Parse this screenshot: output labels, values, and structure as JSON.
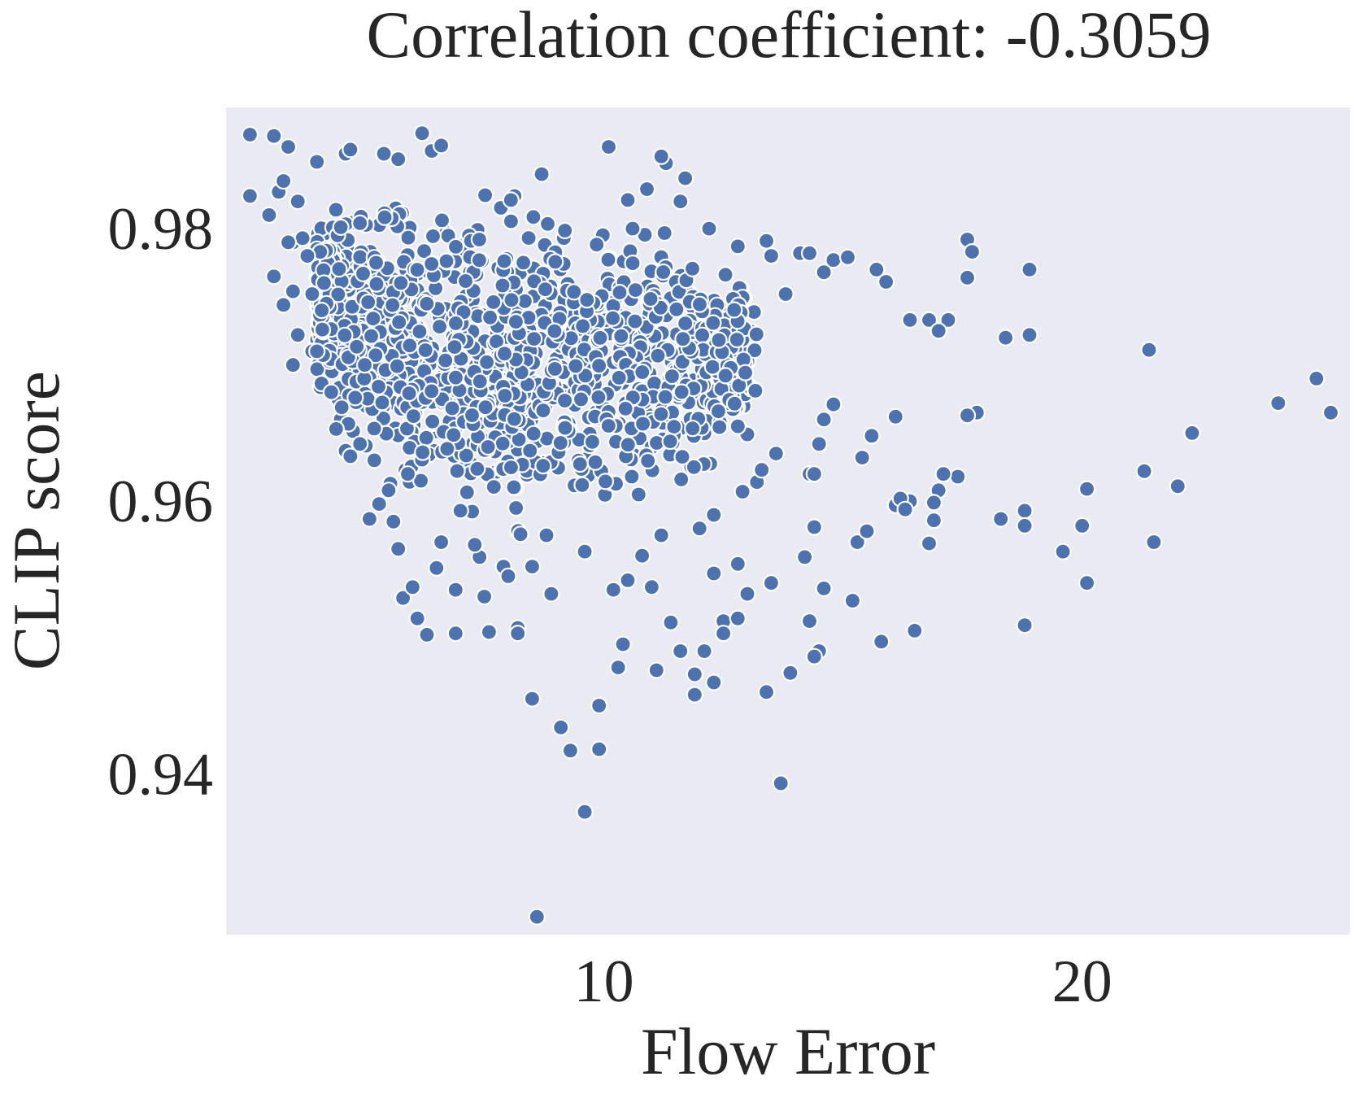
{
  "chart_data": {
    "type": "scatter",
    "title": "Correlation coefficient: -0.3059",
    "xlabel": "Flow Error",
    "ylabel": "CLIP score",
    "xlim": [
      2.1,
      25.6
    ],
    "ylim": [
      0.9282,
      0.9889
    ],
    "x_ticks": [
      10,
      20
    ],
    "x_tick_labels": [
      "10",
      "20"
    ],
    "y_ticks": [
      0.94,
      0.96,
      0.98
    ],
    "y_tick_labels": [
      "0.94",
      "0.96",
      "0.98"
    ],
    "grid": false,
    "style": {
      "plot_background": "#eaeaf2",
      "point_color": "#4c72b0",
      "point_edge": "#ffffff"
    },
    "series": [
      {
        "points": [
          [
            2.6,
            0.9869
          ],
          [
            2.6,
            0.9824
          ],
          [
            3.0,
            0.981
          ],
          [
            3.1,
            0.9868
          ],
          [
            3.4,
            0.986
          ],
          [
            3.2,
            0.9827
          ],
          [
            3.3,
            0.9835
          ],
          [
            3.5,
            0.979
          ],
          [
            3.6,
            0.982
          ],
          [
            4.0,
            0.9849
          ],
          [
            3.1,
            0.9765
          ],
          [
            3.5,
            0.97
          ],
          [
            3.8,
            0.978
          ],
          [
            4.2,
            0.9745
          ],
          [
            3.9,
            0.971
          ],
          [
            4.5,
            0.9801
          ],
          [
            4.3,
            0.968
          ],
          [
            4.4,
            0.9653
          ],
          [
            4.6,
            0.9637
          ],
          [
            4.7,
            0.9633
          ],
          [
            5.1,
            0.9587
          ],
          [
            5.7,
            0.9565
          ],
          [
            5.8,
            0.9529
          ],
          [
            6.1,
            0.9514
          ],
          [
            6.3,
            0.9502
          ],
          [
            6.9,
            0.9503
          ],
          [
            7.6,
            0.9504
          ],
          [
            8.2,
            0.9507
          ],
          [
            8.2,
            0.9503
          ],
          [
            8.9,
            0.9532
          ],
          [
            6.5,
            0.9551
          ],
          [
            7.4,
            0.9559
          ],
          [
            7.9,
            0.9552
          ],
          [
            6.9,
            0.9535
          ],
          [
            5.3,
            0.9598
          ],
          [
            6.0,
            0.9537
          ],
          [
            5.2,
            0.963
          ],
          [
            5.9,
            0.962
          ],
          [
            6.6,
            0.957
          ],
          [
            5.5,
            0.9608
          ],
          [
            4.9,
            0.9642
          ],
          [
            5.6,
            0.9585
          ],
          [
            7.0,
            0.9593
          ],
          [
            4.8,
            0.9676
          ],
          [
            5.0,
            0.97
          ],
          [
            6.2,
            0.987
          ],
          [
            5.4,
            0.9855
          ],
          [
            6.4,
            0.9857
          ],
          [
            6.6,
            0.9861
          ],
          [
            4.6,
            0.9855
          ],
          [
            4.7,
            0.9858
          ],
          [
            5.7,
            0.9851
          ],
          [
            8.7,
            0.984
          ],
          [
            10.1,
            0.986
          ],
          [
            11.3,
            0.9848
          ],
          [
            11.2,
            0.9853
          ],
          [
            10.5,
            0.9821
          ],
          [
            10.9,
            0.9829
          ],
          [
            11.6,
            0.982
          ],
          [
            11.7,
            0.9837
          ],
          [
            10.6,
            0.98
          ],
          [
            12.2,
            0.98
          ],
          [
            12.8,
            0.9787
          ],
          [
            13.4,
            0.9791
          ],
          [
            13.5,
            0.978
          ],
          [
            13.8,
            0.9752
          ],
          [
            14.1,
            0.9782
          ],
          [
            14.3,
            0.9782
          ],
          [
            14.8,
            0.9777
          ],
          [
            15.1,
            0.9779
          ],
          [
            14.6,
            0.9768
          ],
          [
            15.7,
            0.977
          ],
          [
            15.9,
            0.9761
          ],
          [
            16.4,
            0.9733
          ],
          [
            16.8,
            0.9733
          ],
          [
            17.2,
            0.9733
          ],
          [
            17.0,
            0.9725
          ],
          [
            17.6,
            0.9792
          ],
          [
            17.7,
            0.9783
          ],
          [
            17.6,
            0.9764
          ],
          [
            18.4,
            0.972
          ],
          [
            18.9,
            0.977
          ],
          [
            18.9,
            0.9722
          ],
          [
            21.4,
            0.9711
          ],
          [
            24.9,
            0.969
          ],
          [
            25.2,
            0.9665
          ],
          [
            24.1,
            0.9672
          ],
          [
            22.3,
            0.965
          ],
          [
            21.3,
            0.9622
          ],
          [
            20.1,
            0.9609
          ],
          [
            22.0,
            0.9611
          ],
          [
            20.0,
            0.9582
          ],
          [
            21.5,
            0.957
          ],
          [
            19.6,
            0.9563
          ],
          [
            20.1,
            0.954
          ],
          [
            18.8,
            0.9593
          ],
          [
            18.8,
            0.9582
          ],
          [
            18.3,
            0.9587
          ],
          [
            18.8,
            0.9509
          ],
          [
            17.8,
            0.9665
          ],
          [
            17.6,
            0.9663
          ],
          [
            17.4,
            0.9618
          ],
          [
            17.1,
            0.962
          ],
          [
            17.0,
            0.9608
          ],
          [
            16.9,
            0.9599
          ],
          [
            16.8,
            0.9569
          ],
          [
            16.9,
            0.9586
          ],
          [
            16.1,
            0.9662
          ],
          [
            16.4,
            0.96
          ],
          [
            16.1,
            0.9597
          ],
          [
            16.2,
            0.9602
          ],
          [
            16.3,
            0.9594
          ],
          [
            16.5,
            0.9505
          ],
          [
            15.8,
            0.9497
          ],
          [
            15.2,
            0.9527
          ],
          [
            15.3,
            0.957
          ],
          [
            15.5,
            0.9578
          ],
          [
            15.6,
            0.9648
          ],
          [
            15.4,
            0.9632
          ],
          [
            14.8,
            0.9671
          ],
          [
            14.6,
            0.966
          ],
          [
            14.5,
            0.9642
          ],
          [
            14.3,
            0.962
          ],
          [
            14.4,
            0.962
          ],
          [
            14.4,
            0.9581
          ],
          [
            14.2,
            0.9559
          ],
          [
            14.6,
            0.9536
          ],
          [
            14.3,
            0.9512
          ],
          [
            14.5,
            0.949
          ],
          [
            14.4,
            0.9486
          ],
          [
            13.9,
            0.9474
          ],
          [
            13.4,
            0.946
          ],
          [
            13.7,
            0.9393
          ],
          [
            13.5,
            0.954
          ],
          [
            13.0,
            0.9532
          ],
          [
            12.8,
            0.9554
          ],
          [
            12.3,
            0.9547
          ],
          [
            12.5,
            0.9512
          ],
          [
            12.8,
            0.9514
          ],
          [
            12.5,
            0.9503
          ],
          [
            11.6,
            0.949
          ],
          [
            11.9,
            0.9473
          ],
          [
            12.1,
            0.949
          ],
          [
            12.3,
            0.9467
          ],
          [
            11.9,
            0.9458
          ],
          [
            11.1,
            0.9476
          ],
          [
            10.3,
            0.9478
          ],
          [
            10.2,
            0.9535
          ],
          [
            10.4,
            0.9495
          ],
          [
            9.9,
            0.945
          ],
          [
            9.9,
            0.9418
          ],
          [
            9.3,
            0.9417
          ],
          [
            9.1,
            0.9434
          ],
          [
            8.5,
            0.9455
          ],
          [
            8.6,
            0.9295
          ],
          [
            9.6,
            0.9372
          ],
          [
            10.5,
            0.9542
          ],
          [
            11.4,
            0.9511
          ],
          [
            11.0,
            0.9537
          ],
          [
            9.6,
            0.9563
          ],
          [
            8.5,
            0.9552
          ],
          [
            8.8,
            0.9575
          ],
          [
            7.5,
            0.953
          ],
          [
            7.3,
            0.9568
          ],
          [
            8.0,
            0.9545
          ],
          [
            13.2,
            0.9614
          ],
          [
            13.6,
            0.9635
          ],
          [
            13.0,
            0.9649
          ],
          [
            12.8,
            0.9655
          ],
          [
            13.3,
            0.9623
          ],
          [
            12.3,
            0.959
          ],
          [
            12.0,
            0.958
          ],
          [
            12.9,
            0.9607
          ],
          [
            11.2,
            0.9575
          ],
          [
            10.8,
            0.956
          ],
          [
            4.0,
            0.971
          ],
          [
            4.1,
            0.974
          ],
          [
            3.6,
            0.9722
          ],
          [
            4.9,
            0.9804
          ],
          [
            3.7,
            0.9793
          ],
          [
            3.5,
            0.9754
          ],
          [
            3.4,
            0.979
          ],
          [
            3.9,
            0.9752
          ],
          [
            3.3,
            0.9744
          ]
        ],
        "dense_region": {
          "count": 1300,
          "x_range": [
            4.0,
            13.2
          ],
          "y_range": [
            0.954,
            0.985
          ],
          "upper_edge": [
            [
              4.0,
              0.9833
            ],
            [
              6.0,
              0.984
            ],
            [
              8.0,
              0.9837
            ],
            [
              9.8,
              0.9822
            ],
            [
              11.5,
              0.9817
            ],
            [
              12.5,
              0.9793
            ],
            [
              13.2,
              0.977
            ]
          ],
          "lower_edge": [
            [
              4.0,
              0.9663
            ],
            [
              5.0,
              0.9615
            ],
            [
              6.0,
              0.9575
            ],
            [
              7.0,
              0.956
            ],
            [
              8.0,
              0.956
            ],
            [
              9.0,
              0.957
            ],
            [
              10.0,
              0.958
            ],
            [
              11.0,
              0.959
            ],
            [
              12.0,
              0.96
            ],
            [
              13.2,
              0.964
            ]
          ]
        }
      }
    ]
  }
}
